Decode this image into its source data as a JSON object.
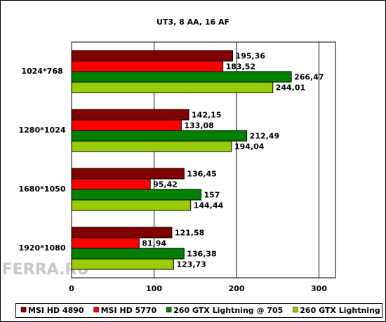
{
  "chart_data": {
    "type": "bar",
    "orientation": "horizontal",
    "title": "UT3, 8 AA, 16 AF",
    "watermark": "FERRA.RU",
    "categories": [
      "1024*768",
      "1280*1024",
      "1680*1050",
      "1920*1080"
    ],
    "series": [
      {
        "name": "MSI HD 4890",
        "color": "#800000",
        "values": [
          195.36,
          142.15,
          136.45,
          121.58
        ],
        "value_labels": [
          "195,36",
          "142,15",
          "136,45",
          "121,58"
        ]
      },
      {
        "name": "MSI HD 5770",
        "color": "#ff0000",
        "values": [
          183.52,
          133.08,
          95.42,
          81.94
        ],
        "value_labels": [
          "183,52",
          "133,08",
          "95,42",
          "81,94"
        ]
      },
      {
        "name": "260 GTX Lightning @ 705",
        "color": "#008000",
        "values": [
          266.47,
          212.49,
          157,
          136.38
        ],
        "value_labels": [
          "266,47",
          "212,49",
          "157",
          "136,38"
        ]
      },
      {
        "name": "260 GTX Lightning",
        "color": "#99cc00",
        "values": [
          244.01,
          194.04,
          144.44,
          123.73
        ],
        "value_labels": [
          "244,01",
          "194,04",
          "144,44",
          "123,73"
        ]
      }
    ],
    "xlim": [
      0,
      320
    ],
    "xticks": [
      0,
      100,
      200,
      300
    ],
    "grid": true,
    "legend": "bottom"
  }
}
